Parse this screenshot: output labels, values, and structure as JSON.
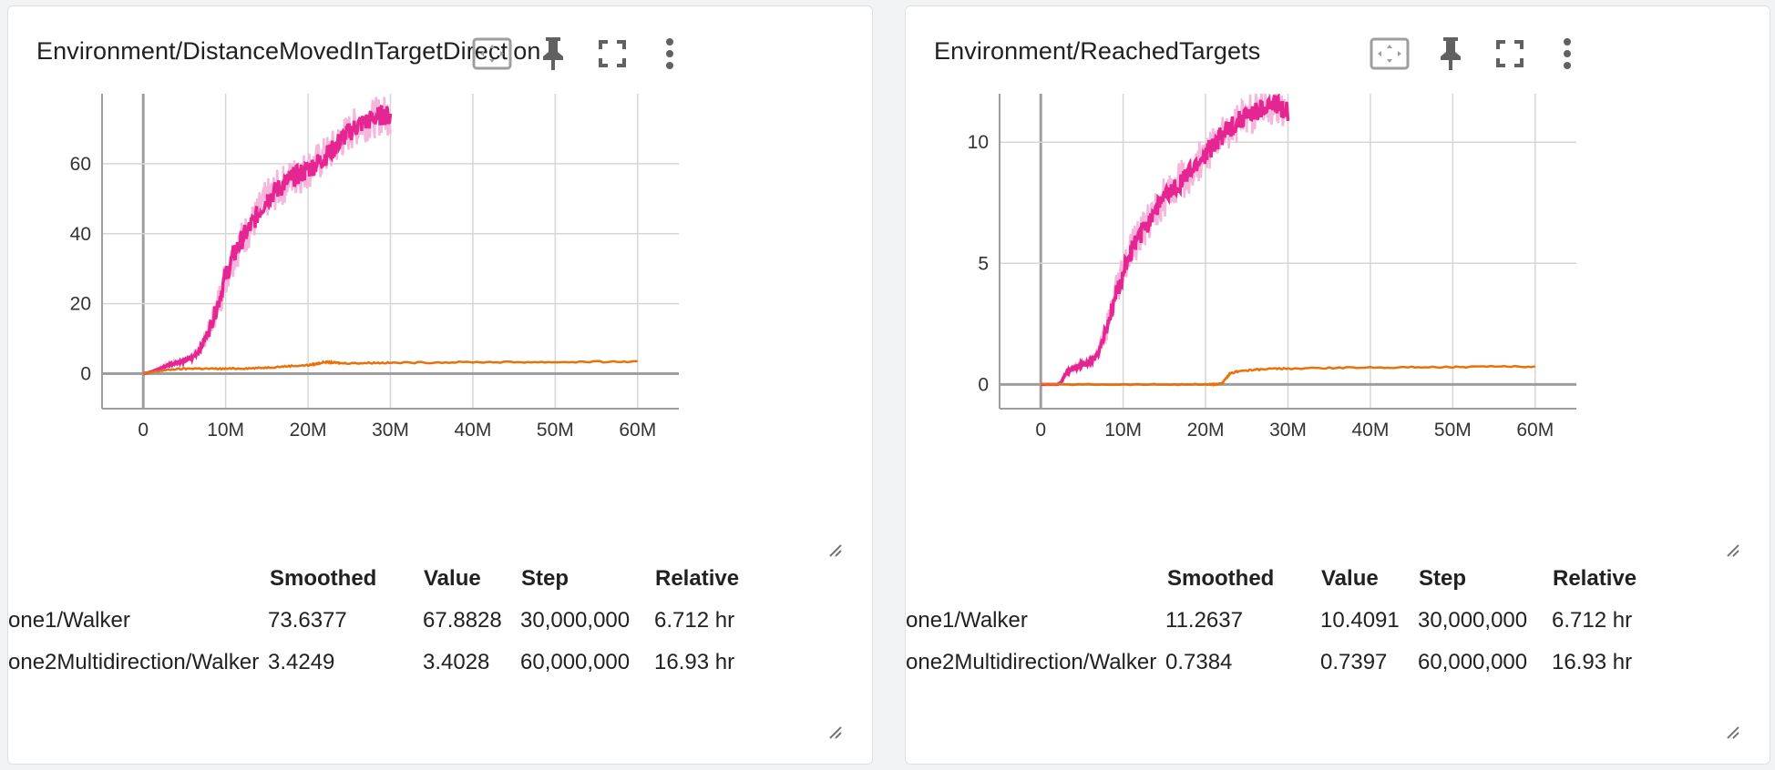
{
  "cards": [
    {
      "title": "Environment/DistanceMovedInTargetDirection",
      "toolbar": {
        "icons": [
          "fit-domain-icon",
          "pin-icon",
          "fullscreen-icon",
          "more-vert-icon"
        ]
      },
      "chart_data": {
        "type": "line",
        "title": "Environment/DistanceMovedInTargetDirection",
        "xlabel": "",
        "ylabel": "",
        "xlim": [
          -5000000,
          65000000
        ],
        "ylim": [
          -10,
          80
        ],
        "x_ticks": [
          0,
          10000000,
          20000000,
          30000000,
          40000000,
          50000000,
          60000000
        ],
        "x_tick_labels": [
          "0",
          "10M",
          "20M",
          "30M",
          "40M",
          "50M",
          "60M"
        ],
        "y_ticks": [
          0,
          20,
          40,
          60
        ],
        "y_tick_labels": [
          "0",
          "20",
          "40",
          "60"
        ],
        "grid": true,
        "series": [
          {
            "color": "#e52592",
            "x": [
              0,
              1000000,
              2000000,
              3000000,
              4000000,
              5000000,
              6000000,
              7000000,
              8000000,
              9000000,
              10000000,
              11000000,
              12000000,
              13000000,
              14000000,
              15000000,
              16000000,
              17000000,
              18000000,
              19000000,
              20000000,
              21000000,
              22000000,
              23000000,
              24000000,
              25000000,
              26000000,
              27000000,
              28000000,
              29000000,
              30000000
            ],
            "y": [
              0,
              0.6,
              1.4,
              2.5,
              3.2,
              3.7,
              4.6,
              7.5,
              12.5,
              19.5,
              28,
              34,
              38.5,
              42,
              46,
              50,
              52,
              54,
              56,
              57,
              58.5,
              60,
              62,
              64,
              67,
              69,
              71,
              72,
              73,
              74,
              73.6
            ]
          },
          {
            "color": "#e8710a",
            "x": [
              0,
              2000000,
              4000000,
              6000000,
              8000000,
              10000000,
              12000000,
              14000000,
              16000000,
              18000000,
              20000000,
              21000000,
              22000000,
              23000000,
              24000000,
              26000000,
              28000000,
              30000000,
              35000000,
              40000000,
              45000000,
              50000000,
              55000000,
              60000000
            ],
            "y": [
              0,
              0.8,
              1.3,
              1.5,
              1.4,
              1.4,
              1.5,
              1.6,
              1.9,
              2.2,
              2.4,
              2.8,
              3.3,
              3.2,
              3.0,
              3.0,
              3.1,
              3.1,
              3.2,
              3.3,
              3.3,
              3.3,
              3.4,
              3.4
            ]
          }
        ]
      },
      "table": {
        "headers": [
          "",
          "Smoothed",
          "Value",
          "Step",
          "Relative"
        ],
        "rows": [
          {
            "name": "one1/Walker",
            "color": "#e52592",
            "smoothed": "73.6377",
            "value": "67.8828",
            "step": "30,000,000",
            "relative": "6.712 hr"
          },
          {
            "name": "one2Multidirection/Walker",
            "color": "#e8710a",
            "smoothed": "3.4249",
            "value": "3.4028",
            "step": "60,000,000",
            "relative": "16.93 hr"
          }
        ]
      }
    },
    {
      "title": "Environment/ReachedTargets",
      "toolbar": {
        "icons": [
          "fit-domain-icon",
          "pin-icon",
          "fullscreen-icon",
          "more-vert-icon"
        ]
      },
      "chart_data": {
        "type": "line",
        "title": "Environment/ReachedTargets",
        "xlabel": "",
        "ylabel": "",
        "xlim": [
          -5000000,
          65000000
        ],
        "ylim": [
          -1,
          12
        ],
        "x_ticks": [
          0,
          10000000,
          20000000,
          30000000,
          40000000,
          50000000,
          60000000
        ],
        "x_tick_labels": [
          "0",
          "10M",
          "20M",
          "30M",
          "40M",
          "50M",
          "60M"
        ],
        "y_ticks": [
          0,
          5,
          10
        ],
        "y_tick_labels": [
          "0",
          "5",
          "10"
        ],
        "grid": true,
        "series": [
          {
            "color": "#e52592",
            "x": [
              0,
              1000000,
              2000000,
              2500000,
              3000000,
              4000000,
              5000000,
              6000000,
              7000000,
              8000000,
              9000000,
              10000000,
              11000000,
              12000000,
              13000000,
              14000000,
              15000000,
              16000000,
              17000000,
              18000000,
              19000000,
              20000000,
              21000000,
              22000000,
              23000000,
              24000000,
              25000000,
              26000000,
              27000000,
              28000000,
              29000000,
              30000000
            ],
            "y": [
              0,
              0,
              0,
              0.1,
              0.45,
              0.7,
              0.8,
              0.9,
              1.3,
              2.3,
              3.5,
              4.6,
              5.5,
              6.1,
              6.7,
              7.3,
              7.7,
              8.0,
              8.4,
              8.7,
              9.1,
              9.5,
              9.9,
              10.3,
              10.6,
              10.9,
              11.1,
              11.2,
              11.4,
              11.5,
              11.5,
              11.26
            ]
          },
          {
            "color": "#e8710a",
            "x": [
              0,
              5000000,
              10000000,
              15000000,
              20000000,
              21000000,
              22000000,
              22500000,
              23000000,
              24000000,
              26000000,
              28000000,
              30000000,
              35000000,
              40000000,
              45000000,
              50000000,
              55000000,
              60000000
            ],
            "y": [
              0,
              0,
              0,
              0,
              0,
              0,
              0.05,
              0.25,
              0.45,
              0.55,
              0.6,
              0.65,
              0.65,
              0.68,
              0.7,
              0.71,
              0.72,
              0.73,
              0.74
            ]
          }
        ]
      },
      "table": {
        "headers": [
          "",
          "Smoothed",
          "Value",
          "Step",
          "Relative"
        ],
        "rows": [
          {
            "name": "one1/Walker",
            "color": "#e52592",
            "smoothed": "11.2637",
            "value": "10.4091",
            "step": "30,000,000",
            "relative": "6.712 hr"
          },
          {
            "name": "one2Multidirection/Walker",
            "color": "#e8710a",
            "smoothed": "0.7384",
            "value": "0.7397",
            "step": "60,000,000",
            "relative": "16.93 hr"
          }
        ]
      }
    }
  ]
}
